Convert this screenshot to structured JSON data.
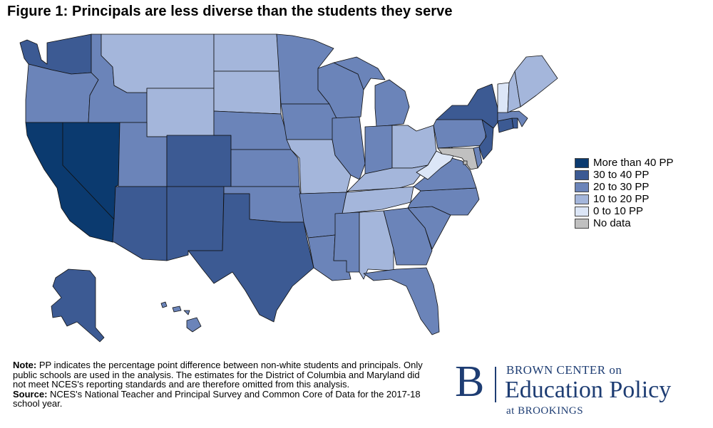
{
  "title": "Figure 1: Principals are less diverse than the students they serve",
  "colors": {
    "more_than_40": "#0b3a6f",
    "c30_40": "#3c5a93",
    "c20_30": "#6b84b9",
    "c10_20": "#a4b6db",
    "c0_10": "#dce6f7",
    "no_data": "#c0c0c0",
    "brand": "#1e3d73"
  },
  "legend": [
    {
      "label": "More than 40 PP",
      "color": "#0b3a6f"
    },
    {
      "label": "30 to 40 PP",
      "color": "#3c5a93"
    },
    {
      "label": "20 to 30 PP",
      "color": "#6b84b9"
    },
    {
      "label": "10 to 20 PP",
      "color": "#a4b6db"
    },
    {
      "label": "0 to 10 PP",
      "color": "#dce6f7"
    },
    {
      "label": "No data",
      "color": "#c0c0c0"
    }
  ],
  "notes": {
    "note_label": "Note:",
    "note_text": " PP indicates the percentage point difference between non-white students and principals. Only public schools are used in the analysis. The estimates for the District of Columbia and Maryland did not meet NCES's reporting standards and are therefore omitted from this analysis.",
    "source_label": "Source:",
    "source_text": " NCES's National Teacher and Principal Survey and Common Core of Data for the 2017-18 school year."
  },
  "logo": {
    "letter": "B",
    "line1": "BROWN CENTER on",
    "line2": "Education Policy",
    "line3": "at BROOKINGS"
  },
  "map_data": {
    "categories": [
      "More than 40 PP",
      "30 to 40 PP",
      "20 to 30 PP",
      "10 to 20 PP",
      "0 to 10 PP",
      "No data"
    ],
    "states": [
      {
        "state": "WA",
        "category": "30 to 40 PP"
      },
      {
        "state": "OR",
        "category": "20 to 30 PP"
      },
      {
        "state": "CA",
        "category": "More than 40 PP"
      },
      {
        "state": "NV",
        "category": "More than 40 PP"
      },
      {
        "state": "ID",
        "category": "20 to 30 PP"
      },
      {
        "state": "MT",
        "category": "10 to 20 PP"
      },
      {
        "state": "WY",
        "category": "10 to 20 PP"
      },
      {
        "state": "UT",
        "category": "20 to 30 PP"
      },
      {
        "state": "AZ",
        "category": "30 to 40 PP"
      },
      {
        "state": "CO",
        "category": "30 to 40 PP"
      },
      {
        "state": "NM",
        "category": "30 to 40 PP"
      },
      {
        "state": "ND",
        "category": "10 to 20 PP"
      },
      {
        "state": "SD",
        "category": "10 to 20 PP"
      },
      {
        "state": "NE",
        "category": "20 to 30 PP"
      },
      {
        "state": "KS",
        "category": "20 to 30 PP"
      },
      {
        "state": "OK",
        "category": "20 to 30 PP"
      },
      {
        "state": "TX",
        "category": "30 to 40 PP"
      },
      {
        "state": "MN",
        "category": "20 to 30 PP"
      },
      {
        "state": "IA",
        "category": "20 to 30 PP"
      },
      {
        "state": "MO",
        "category": "10 to 20 PP"
      },
      {
        "state": "AR",
        "category": "20 to 30 PP"
      },
      {
        "state": "LA",
        "category": "20 to 30 PP"
      },
      {
        "state": "WI",
        "category": "20 to 30 PP"
      },
      {
        "state": "IL",
        "category": "20 to 30 PP"
      },
      {
        "state": "MI",
        "category": "20 to 30 PP"
      },
      {
        "state": "IN",
        "category": "20 to 30 PP"
      },
      {
        "state": "OH",
        "category": "10 to 20 PP"
      },
      {
        "state": "KY",
        "category": "10 to 20 PP"
      },
      {
        "state": "TN",
        "category": "10 to 20 PP"
      },
      {
        "state": "MS",
        "category": "20 to 30 PP"
      },
      {
        "state": "AL",
        "category": "10 to 20 PP"
      },
      {
        "state": "GA",
        "category": "20 to 30 PP"
      },
      {
        "state": "FL",
        "category": "20 to 30 PP"
      },
      {
        "state": "SC",
        "category": "20 to 30 PP"
      },
      {
        "state": "NC",
        "category": "20 to 30 PP"
      },
      {
        "state": "VA",
        "category": "20 to 30 PP"
      },
      {
        "state": "WV",
        "category": "0 to 10 PP"
      },
      {
        "state": "PA",
        "category": "20 to 30 PP"
      },
      {
        "state": "NY",
        "category": "30 to 40 PP"
      },
      {
        "state": "NJ",
        "category": "30 to 40 PP"
      },
      {
        "state": "DE",
        "category": "20 to 30 PP"
      },
      {
        "state": "MD",
        "category": "No data"
      },
      {
        "state": "DC",
        "category": "No data"
      },
      {
        "state": "CT",
        "category": "30 to 40 PP"
      },
      {
        "state": "RI",
        "category": "30 to 40 PP"
      },
      {
        "state": "MA",
        "category": "20 to 30 PP"
      },
      {
        "state": "VT",
        "category": "0 to 10 PP"
      },
      {
        "state": "NH",
        "category": "10 to 20 PP"
      },
      {
        "state": "ME",
        "category": "10 to 20 PP"
      },
      {
        "state": "AK",
        "category": "30 to 40 PP"
      },
      {
        "state": "HI",
        "category": "20 to 30 PP"
      }
    ]
  }
}
